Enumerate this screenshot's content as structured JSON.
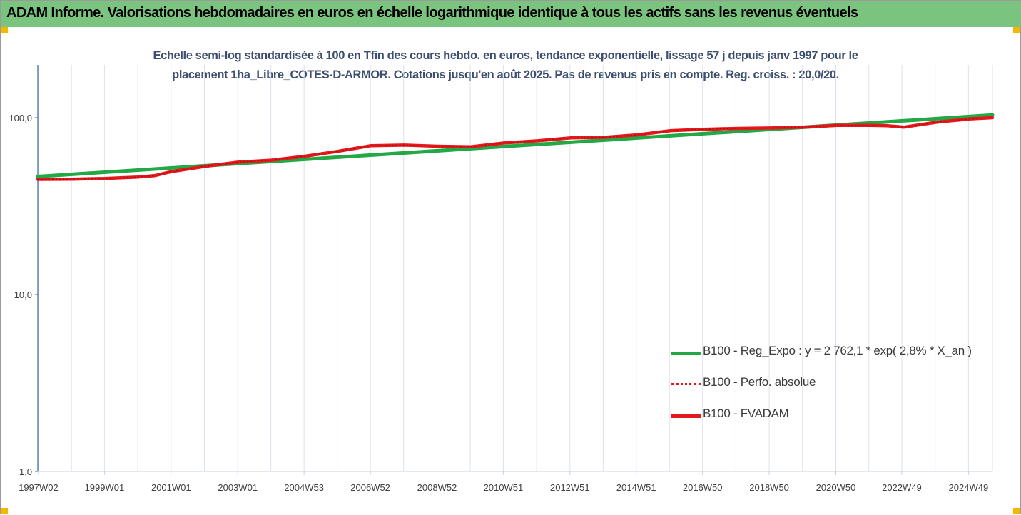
{
  "header": {
    "title": "ADAM Informe. Valorisations hebdomadaires en euros en échelle logarithmique identique à tous les actifs sans les revenus éventuels"
  },
  "chart_data": {
    "type": "line",
    "title_line1": "Echelle semi-log standardisée à 100 en Tfin des cours hebdo. en euros, tendance exponentielle, lissage 57 j depuis janv 1997 pour le",
    "title_line2": "placement 1ha_Libre_COTES-D-ARMOR. Cotations jusqu'en août 2025. Pas de revenus pris en compte. Reg. croiss. : 20,0/20.",
    "y_scale": "log",
    "ylim": [
      1,
      200
    ],
    "y_ticks": [
      {
        "value": 1,
        "label": "1,0"
      },
      {
        "value": 10,
        "label": "10,0"
      },
      {
        "value": 100,
        "label": "100,0"
      }
    ],
    "x_range": [
      1997.0,
      2025.65
    ],
    "x_ticks": [
      {
        "t": 1997.02,
        "label": "1997W02"
      },
      {
        "t": 1999.0,
        "label": "1999W01"
      },
      {
        "t": 2001.0,
        "label": "2001W01"
      },
      {
        "t": 2003.0,
        "label": "2003W01"
      },
      {
        "t": 2004.99,
        "label": "2004W53"
      },
      {
        "t": 2006.98,
        "label": "2006W52"
      },
      {
        "t": 2008.98,
        "label": "2008W52"
      },
      {
        "t": 2010.97,
        "label": "2010W51"
      },
      {
        "t": 2012.97,
        "label": "2012W51"
      },
      {
        "t": 2014.96,
        "label": "2014W51"
      },
      {
        "t": 2016.95,
        "label": "2016W50"
      },
      {
        "t": 2018.95,
        "label": "2018W50"
      },
      {
        "t": 2020.95,
        "label": "2020W50"
      },
      {
        "t": 2022.93,
        "label": "2022W49"
      },
      {
        "t": 2024.93,
        "label": "2024W49"
      }
    ],
    "grid": "vertical",
    "legend_position": "bottom-right",
    "colors": {
      "trend": "#22a845",
      "perf": "#e31a1c",
      "fvadam": "#e31a1c",
      "grid": "#d9e2ec",
      "axis": "#3d6a9e"
    },
    "series": [
      {
        "name": "B100 - Reg_Expo : y = 2 762,1 * exp( 2,8% *  X_an )",
        "style": "solid-green",
        "x": [
          1997.0,
          2025.65
        ],
        "values": [
          46.5,
          103.5
        ]
      },
      {
        "name": "B100 - Perfo. absolue",
        "style": "dotted-red",
        "x": [
          1997.0,
          1998.0,
          1999.0,
          2000.0,
          2000.5,
          2001.0,
          2002.0,
          2003.0,
          2004.0,
          2005.0,
          2006.0,
          2007.0,
          2008.0,
          2009.0,
          2010.0,
          2011.0,
          2012.0,
          2013.0,
          2014.0,
          2015.0,
          2016.0,
          2017.0,
          2018.0,
          2019.0,
          2020.0,
          2021.0,
          2022.0,
          2022.5,
          2023.0,
          2024.0,
          2025.0,
          2025.65
        ],
        "values": [
          44.8,
          44.9,
          45.3,
          46.2,
          47.0,
          49.5,
          53.0,
          56.0,
          57.5,
          60.5,
          64.5,
          69.5,
          70.0,
          69.0,
          68.5,
          72.0,
          74.0,
          77.0,
          77.5,
          80.0,
          84.5,
          86.0,
          87.0,
          87.5,
          88.5,
          90.5,
          90.5,
          90.0,
          88.5,
          94.5,
          98.5,
          100.0
        ]
      },
      {
        "name": "B100 - FVADAM",
        "style": "solid-red",
        "x": [
          1997.0,
          1998.0,
          1999.0,
          2000.0,
          2000.5,
          2001.0,
          2002.0,
          2003.0,
          2004.0,
          2005.0,
          2006.0,
          2007.0,
          2008.0,
          2009.0,
          2010.0,
          2011.0,
          2012.0,
          2013.0,
          2014.0,
          2015.0,
          2016.0,
          2017.0,
          2018.0,
          2019.0,
          2020.0,
          2021.0,
          2022.0,
          2022.5,
          2023.0,
          2024.0,
          2025.0,
          2025.65
        ],
        "values": [
          44.8,
          44.9,
          45.3,
          46.2,
          47.0,
          49.5,
          53.0,
          56.0,
          57.5,
          60.5,
          64.5,
          69.5,
          70.0,
          69.0,
          68.5,
          72.0,
          74.0,
          77.0,
          77.5,
          80.0,
          84.5,
          86.0,
          87.0,
          87.5,
          88.5,
          90.5,
          90.5,
          90.0,
          88.5,
          94.5,
          98.5,
          100.0
        ]
      }
    ]
  }
}
